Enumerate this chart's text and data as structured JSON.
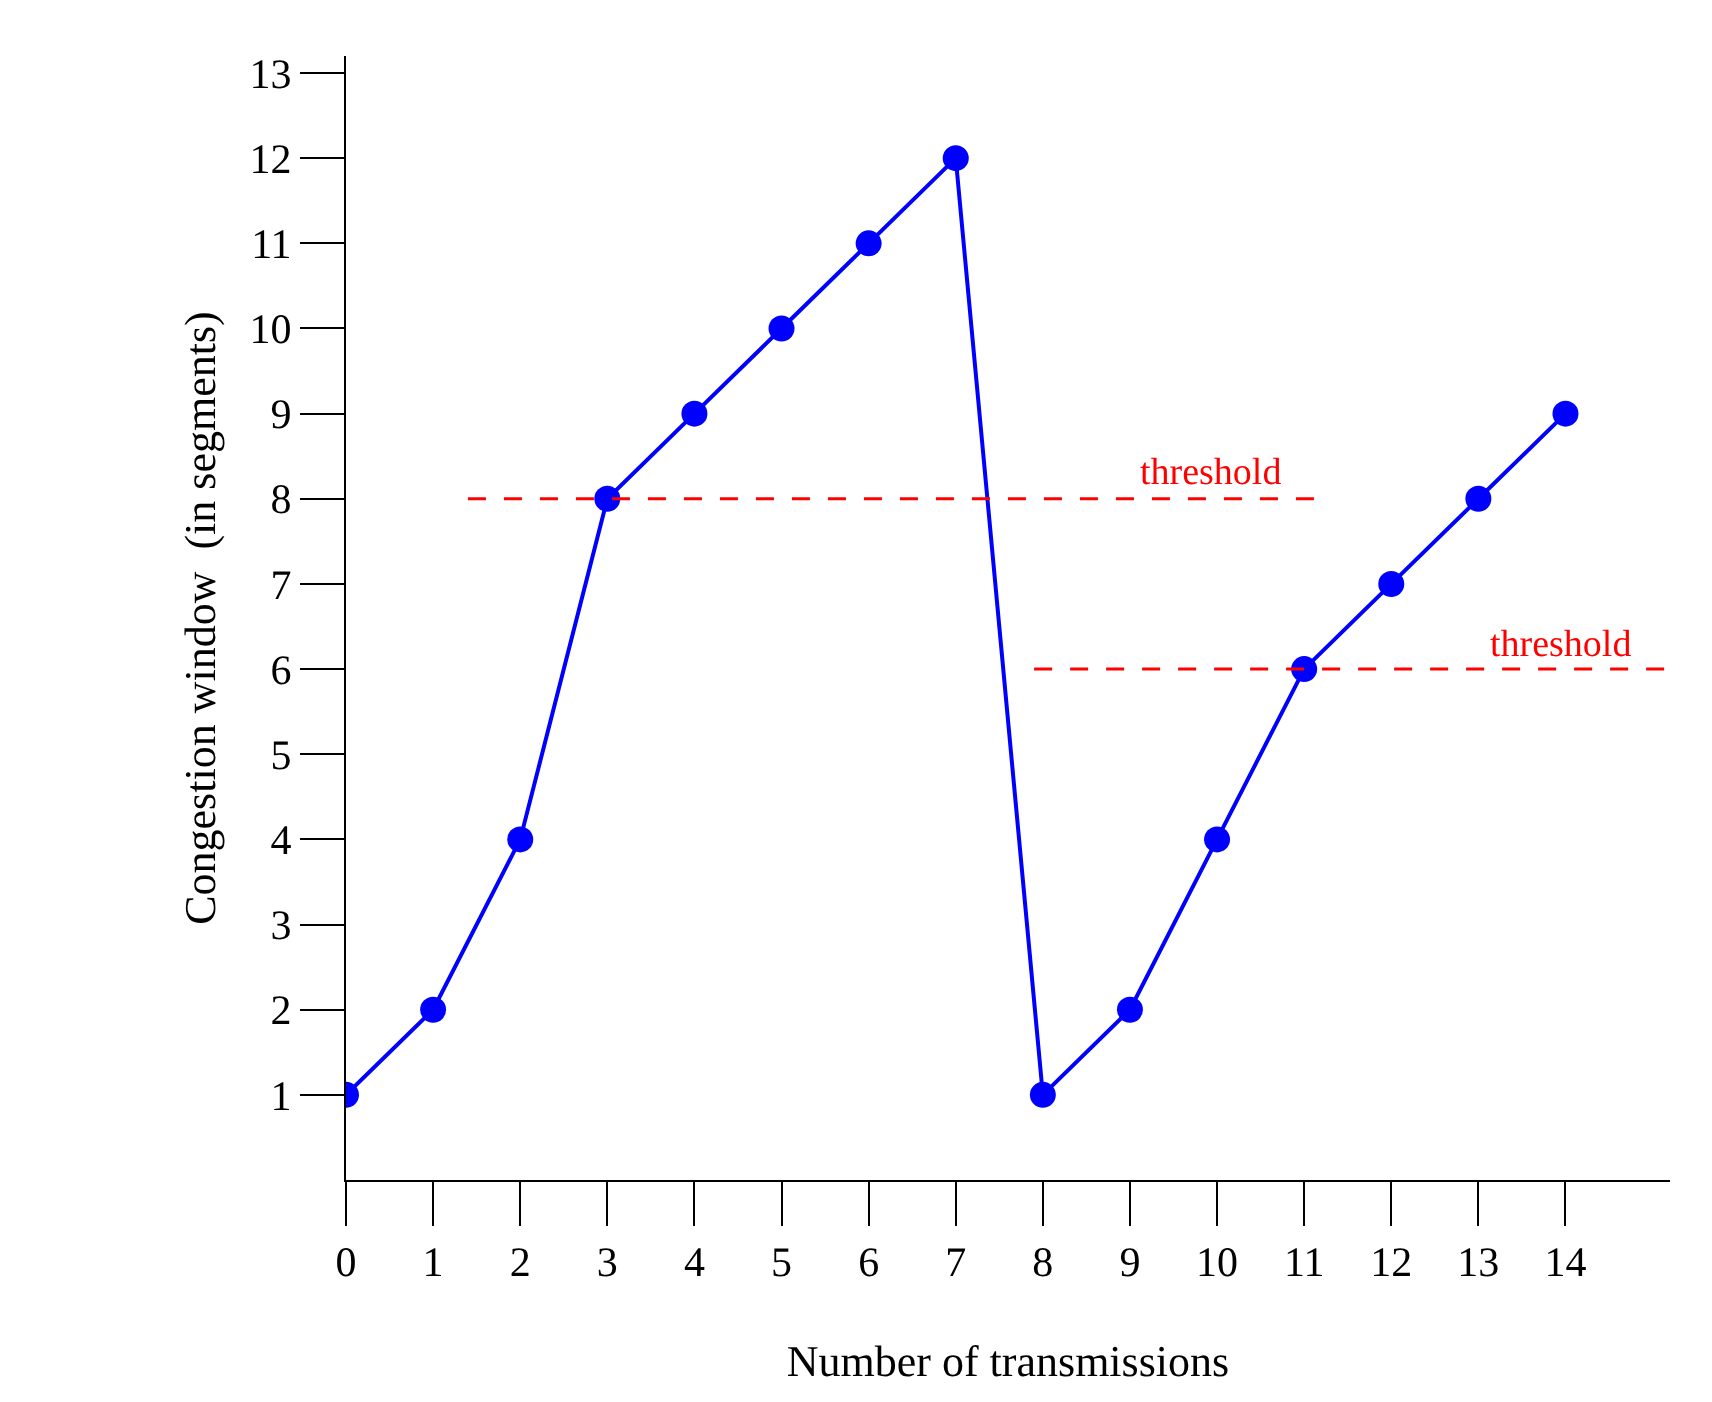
{
  "chart_data": {
    "type": "line",
    "xlabel": "Number of transmissions",
    "ylabel": "Congestion window  (in segments)",
    "x": [
      0,
      1,
      2,
      3,
      4,
      5,
      6,
      7,
      8,
      9,
      10,
      11,
      12,
      13,
      14
    ],
    "series": [
      {
        "color": "#0000ff",
        "values": [
          1,
          2,
          4,
          8,
          9,
          10,
          11,
          12,
          1,
          2,
          4,
          6,
          7,
          8,
          9
        ],
        "marker": "circle",
        "line_style": "solid"
      },
      {
        "name": "threshold",
        "color": "#ff0000",
        "x": [
          1.4,
          11.2
        ],
        "values": [
          8,
          8
        ],
        "marker": "none",
        "line_style": "dashed"
      },
      {
        "name": "threshold",
        "color": "#ff0000",
        "x": [
          7.9,
          15.2
        ],
        "values": [
          6,
          6
        ],
        "marker": "none",
        "line_style": "dashed"
      }
    ],
    "xlim": [
      0,
      15.2
    ],
    "xticks": [
      0,
      1,
      2,
      3,
      4,
      5,
      6,
      7,
      8,
      9,
      10,
      11,
      12,
      13,
      14
    ],
    "ylim": [
      0,
      13.2
    ],
    "yticks": [
      1,
      2,
      3,
      4,
      5,
      6,
      7,
      8,
      9,
      10,
      11,
      12,
      13
    ],
    "legend": false
  }
}
